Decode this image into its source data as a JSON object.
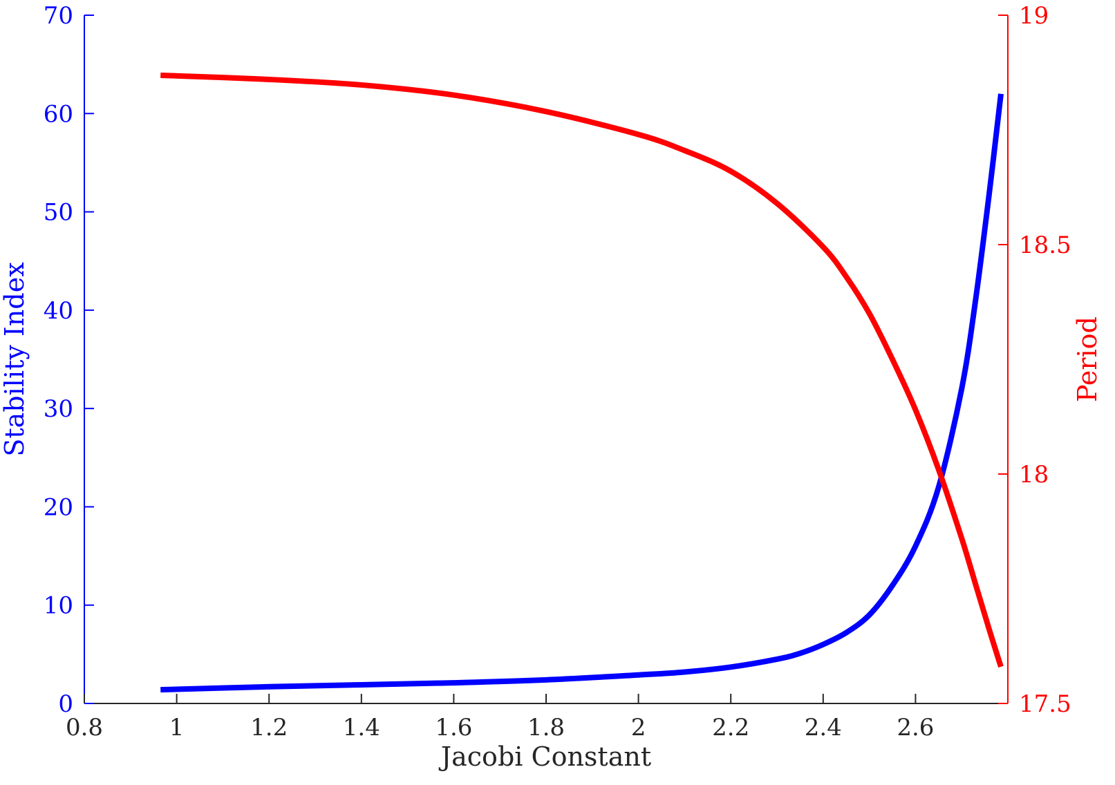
{
  "chart_data": {
    "type": "line",
    "title": "",
    "xlabel": "Jacobi Constant",
    "ylabel": "Stability Index",
    "y2label": "Period",
    "xlim": [
      0.8,
      2.8
    ],
    "ylim": [
      0,
      70
    ],
    "y2lim": [
      17.5,
      19
    ],
    "x_ticks": [
      "0.8",
      "1",
      "1.2",
      "1.4",
      "1.6",
      "1.8",
      "2",
      "2.2",
      "2.4",
      "2.6"
    ],
    "y_ticks": [
      "0",
      "10",
      "20",
      "30",
      "40",
      "50",
      "60",
      "70"
    ],
    "y2_ticks": [
      "17.5",
      "18",
      "18.5",
      "19"
    ],
    "grid": false,
    "colors": {
      "stability": "#0000ff",
      "period": "#ff0000",
      "xaxis": "#262626"
    },
    "series": [
      {
        "axis": "left",
        "color": "#0000ff",
        "x": [
          0.965,
          1.2,
          1.4,
          1.6,
          1.8,
          2.0,
          2.1,
          2.2,
          2.3,
          2.35,
          2.4,
          2.45,
          2.5,
          2.55,
          2.6,
          2.65,
          2.7,
          2.73,
          2.76,
          2.785
        ],
        "values": [
          1.4,
          1.7,
          1.9,
          2.1,
          2.4,
          2.9,
          3.2,
          3.7,
          4.5,
          5.1,
          6.0,
          7.2,
          9.0,
          12.0,
          16.0,
          22.0,
          32.0,
          41.0,
          52.0,
          62.0
        ]
      },
      {
        "axis": "right",
        "color": "#ff0000",
        "x": [
          0.965,
          1.2,
          1.4,
          1.6,
          1.8,
          2.0,
          2.1,
          2.2,
          2.3,
          2.4,
          2.45,
          2.5,
          2.55,
          2.6,
          2.65,
          2.7,
          2.73,
          2.76,
          2.785
        ],
        "values": [
          18.869,
          18.86,
          18.848,
          18.826,
          18.79,
          18.74,
          18.705,
          18.66,
          18.59,
          18.495,
          18.43,
          18.35,
          18.25,
          18.14,
          18.01,
          17.86,
          17.76,
          17.66,
          17.58
        ]
      }
    ]
  }
}
